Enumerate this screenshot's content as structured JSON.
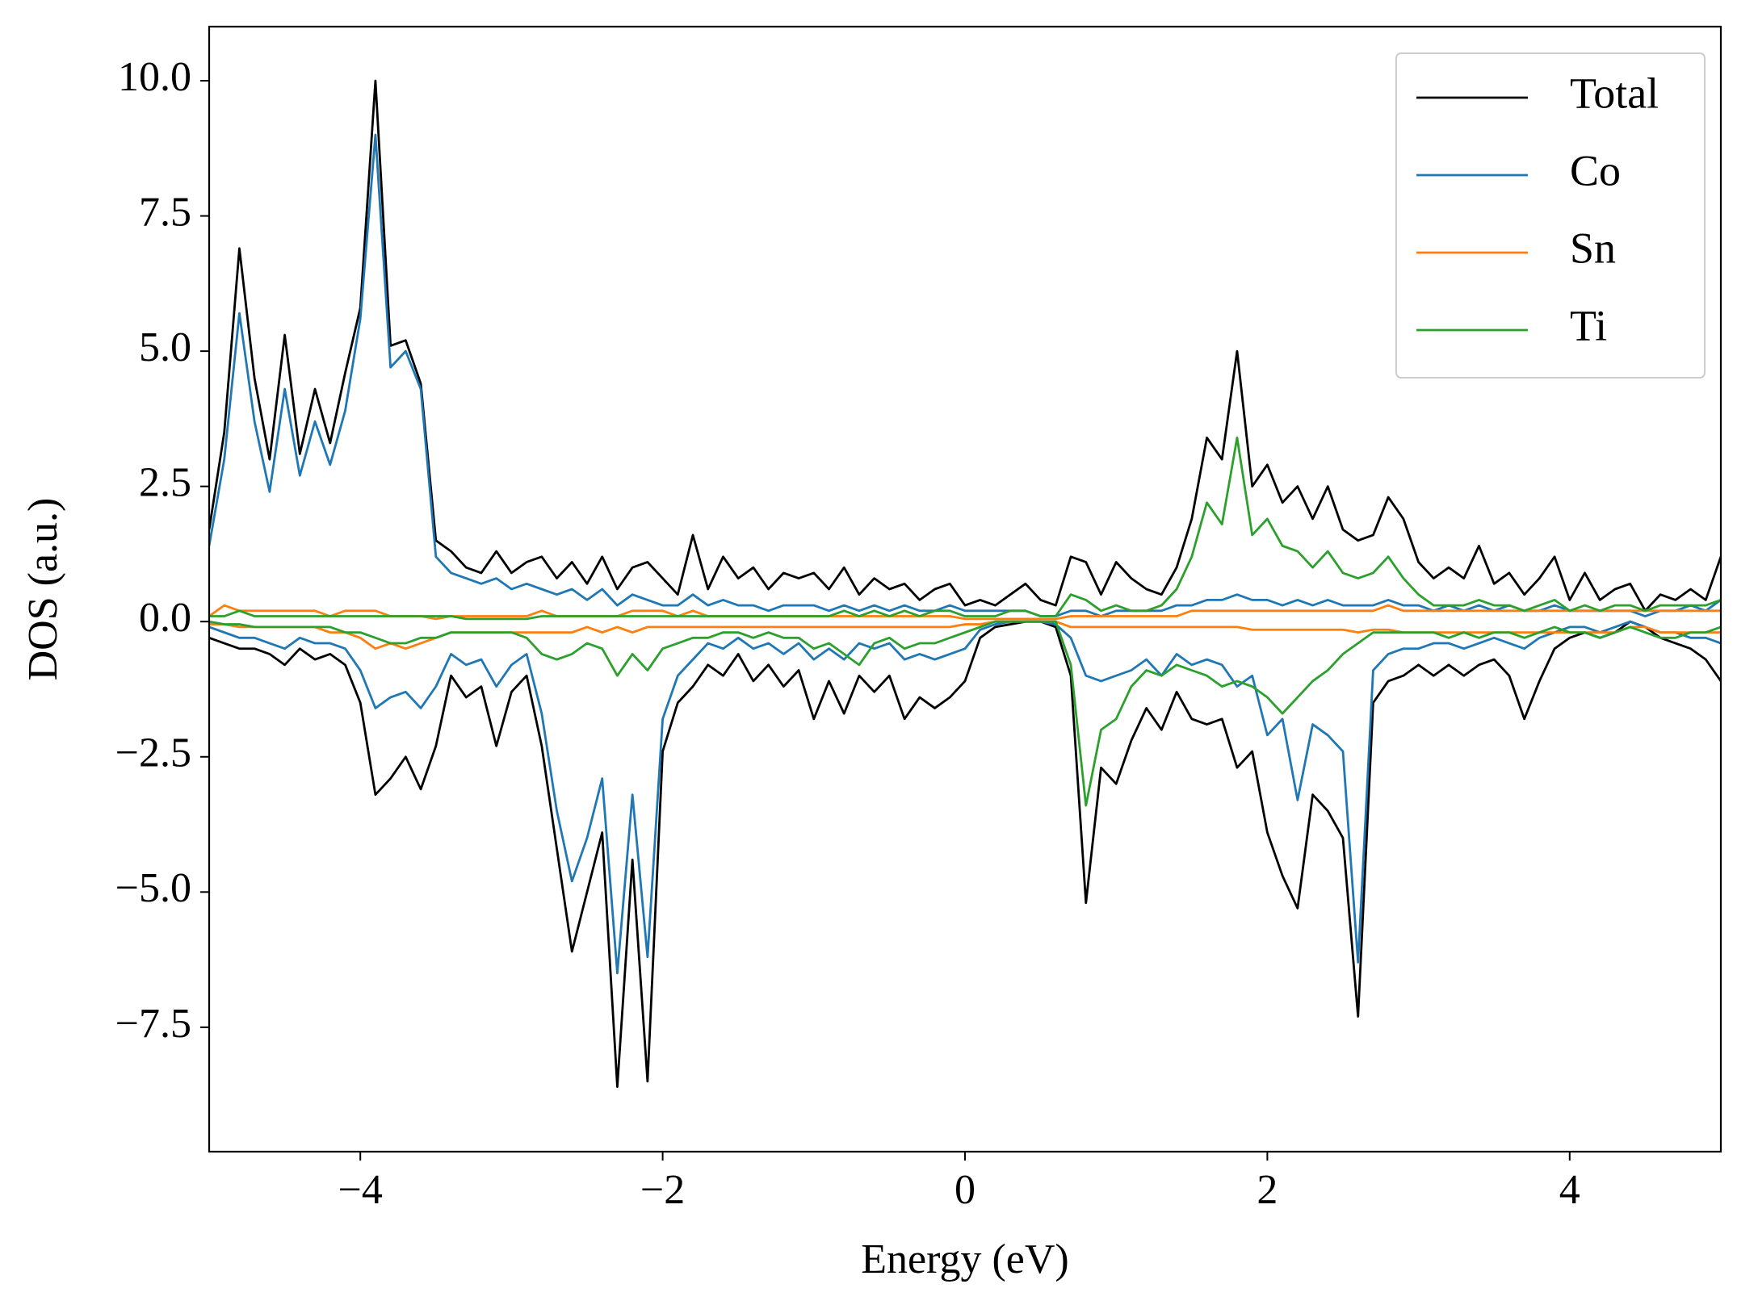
{
  "chart_data": {
    "type": "line",
    "xlabel": "Energy (eV)",
    "ylabel": "DOS (a.u.)",
    "x": [
      -5,
      -4.9,
      -4.8,
      -4.7,
      -4.6,
      -4.5,
      -4.4,
      -4.3,
      -4.2,
      -4.1,
      -4,
      -3.9,
      -3.8,
      -3.7,
      -3.6,
      -3.5,
      -3.4,
      -3.3,
      -3.2,
      -3.1,
      -3,
      -2.9,
      -2.8,
      -2.7,
      -2.6,
      -2.5,
      -2.4,
      -2.3,
      -2.2,
      -2.1,
      -2,
      -1.9,
      -1.8,
      -1.7,
      -1.6,
      -1.5,
      -1.4,
      -1.3,
      -1.2,
      -1.1,
      -1,
      -0.9,
      -0.8,
      -0.7,
      -0.6,
      -0.5,
      -0.4,
      -0.3,
      -0.2,
      -0.1,
      0,
      0.1,
      0.2,
      0.3,
      0.4,
      0.5,
      0.6,
      0.7,
      0.8,
      0.9,
      1,
      1.1,
      1.2,
      1.3,
      1.4,
      1.5,
      1.6,
      1.7,
      1.8,
      1.9,
      2,
      2.1,
      2.2,
      2.3,
      2.4,
      2.5,
      2.6,
      2.7,
      2.8,
      2.9,
      3,
      3.1,
      3.2,
      3.3,
      3.4,
      3.5,
      3.6,
      3.7,
      3.8,
      3.9,
      4,
      4.1,
      4.2,
      4.3,
      4.4,
      4.5,
      4.6,
      4.7,
      4.8,
      4.9,
      5
    ],
    "series": [
      {
        "name": "Total",
        "color": "#000000",
        "values": [
          1.7,
          3.5,
          6.9,
          4.5,
          3.0,
          5.3,
          3.1,
          4.3,
          3.3,
          4.6,
          5.8,
          10.0,
          5.1,
          5.2,
          4.4,
          1.5,
          1.3,
          1.0,
          0.9,
          1.3,
          0.9,
          1.1,
          1.2,
          0.8,
          1.1,
          0.7,
          1.2,
          0.6,
          1.0,
          1.1,
          0.8,
          0.5,
          1.6,
          0.6,
          1.2,
          0.8,
          1.0,
          0.6,
          0.9,
          0.8,
          0.9,
          0.6,
          1.0,
          0.5,
          0.8,
          0.6,
          0.7,
          0.4,
          0.6,
          0.7,
          0.3,
          0.4,
          0.3,
          0.5,
          0.7,
          0.4,
          0.3,
          1.2,
          1.1,
          0.5,
          1.1,
          0.8,
          0.6,
          0.5,
          1.0,
          1.9,
          3.4,
          3.0,
          5.0,
          2.5,
          2.9,
          2.2,
          2.5,
          1.9,
          2.5,
          1.7,
          1.5,
          1.6,
          2.3,
          1.9,
          1.1,
          0.8,
          1.0,
          0.8,
          1.4,
          0.7,
          0.9,
          0.5,
          0.8,
          1.2,
          0.4,
          0.9,
          0.4,
          0.6,
          0.7,
          0.2,
          0.5,
          0.4,
          0.6,
          0.4,
          1.2
        ]
      },
      {
        "color": "#000000",
        "values": [
          -0.3,
          -0.4,
          -0.5,
          -0.5,
          -0.6,
          -0.8,
          -0.5,
          -0.7,
          -0.6,
          -0.8,
          -1.5,
          -3.2,
          -2.9,
          -2.5,
          -3.1,
          -2.3,
          -1.0,
          -1.4,
          -1.2,
          -2.3,
          -1.3,
          -1.0,
          -2.3,
          -4.2,
          -6.1,
          -5.0,
          -3.9,
          -8.6,
          -4.4,
          -8.5,
          -2.4,
          -1.5,
          -1.2,
          -0.8,
          -1.0,
          -0.6,
          -1.1,
          -0.8,
          -1.2,
          -0.9,
          -1.8,
          -1.1,
          -1.7,
          -1.0,
          -1.3,
          -1.0,
          -1.8,
          -1.4,
          -1.6,
          -1.4,
          -1.1,
          -0.3,
          -0.1,
          -0.05,
          0,
          0,
          -0.1,
          -1.0,
          -5.2,
          -2.7,
          -3.0,
          -2.2,
          -1.6,
          -2.0,
          -1.3,
          -1.8,
          -1.9,
          -1.8,
          -2.7,
          -2.4,
          -3.9,
          -4.7,
          -5.3,
          -3.2,
          -3.5,
          -4.0,
          -7.3,
          -1.5,
          -1.1,
          -1.0,
          -0.8,
          -1.0,
          -0.8,
          -1.0,
          -0.8,
          -0.7,
          -1.0,
          -1.8,
          -1.1,
          -0.5,
          -0.3,
          -0.2,
          -0.3,
          -0.2,
          0,
          -0.1,
          -0.3,
          -0.4,
          -0.5,
          -0.7,
          -1.1
        ]
      },
      {
        "name": "Co",
        "color": "#1f77b4",
        "values": [
          1.4,
          3.0,
          5.7,
          3.7,
          2.4,
          4.3,
          2.7,
          3.7,
          2.9,
          3.9,
          5.6,
          9.0,
          4.7,
          5.0,
          4.3,
          1.2,
          0.9,
          0.8,
          0.7,
          0.8,
          0.6,
          0.7,
          0.6,
          0.5,
          0.6,
          0.4,
          0.6,
          0.3,
          0.5,
          0.4,
          0.3,
          0.3,
          0.5,
          0.3,
          0.4,
          0.3,
          0.3,
          0.2,
          0.3,
          0.3,
          0.3,
          0.2,
          0.3,
          0.2,
          0.3,
          0.2,
          0.3,
          0.2,
          0.2,
          0.3,
          0.2,
          0.2,
          0.2,
          0.2,
          0.2,
          0.1,
          0.1,
          0.2,
          0.2,
          0.1,
          0.2,
          0.2,
          0.2,
          0.2,
          0.3,
          0.3,
          0.4,
          0.4,
          0.5,
          0.4,
          0.4,
          0.3,
          0.4,
          0.3,
          0.4,
          0.3,
          0.3,
          0.3,
          0.4,
          0.3,
          0.3,
          0.2,
          0.3,
          0.2,
          0.3,
          0.2,
          0.3,
          0.2,
          0.2,
          0.3,
          0.2,
          0.2,
          0.2,
          0.2,
          0.2,
          0.1,
          0.2,
          0.2,
          0.3,
          0.2,
          0.4
        ]
      },
      {
        "color": "#1f77b4",
        "values": [
          -0.1,
          -0.2,
          -0.3,
          -0.3,
          -0.4,
          -0.5,
          -0.3,
          -0.4,
          -0.4,
          -0.5,
          -0.9,
          -1.6,
          -1.4,
          -1.3,
          -1.6,
          -1.2,
          -0.6,
          -0.8,
          -0.7,
          -1.2,
          -0.8,
          -0.6,
          -1.7,
          -3.5,
          -4.8,
          -4.0,
          -2.9,
          -6.5,
          -3.2,
          -6.2,
          -1.8,
          -1.0,
          -0.7,
          -0.4,
          -0.5,
          -0.3,
          -0.5,
          -0.4,
          -0.6,
          -0.4,
          -0.7,
          -0.5,
          -0.7,
          -0.4,
          -0.5,
          -0.4,
          -0.7,
          -0.6,
          -0.7,
          -0.6,
          -0.5,
          -0.15,
          -0.05,
          0,
          0,
          0,
          -0.05,
          -0.3,
          -1.0,
          -1.1,
          -1.0,
          -0.9,
          -0.7,
          -1.0,
          -0.6,
          -0.8,
          -0.7,
          -0.8,
          -1.2,
          -1.0,
          -2.1,
          -1.8,
          -3.3,
          -1.9,
          -2.1,
          -2.4,
          -6.3,
          -0.9,
          -0.6,
          -0.5,
          -0.5,
          -0.4,
          -0.4,
          -0.5,
          -0.4,
          -0.3,
          -0.4,
          -0.5,
          -0.3,
          -0.2,
          -0.1,
          -0.1,
          -0.2,
          -0.1,
          0,
          -0.1,
          -0.2,
          -0.2,
          -0.3,
          -0.3,
          -0.4
        ]
      },
      {
        "name": "Sn",
        "color": "#ff7f0e",
        "values": [
          0.1,
          0.3,
          0.2,
          0.2,
          0.2,
          0.2,
          0.2,
          0.2,
          0.1,
          0.2,
          0.2,
          0.2,
          0.1,
          0.1,
          0.1,
          0.05,
          0.1,
          0.1,
          0.1,
          0.1,
          0.1,
          0.1,
          0.2,
          0.1,
          0.1,
          0.1,
          0.1,
          0.1,
          0.2,
          0.2,
          0.2,
          0.1,
          0.2,
          0.1,
          0.1,
          0.1,
          0.1,
          0.1,
          0.1,
          0.1,
          0.1,
          0.1,
          0.1,
          0.1,
          0.1,
          0.1,
          0.1,
          0.1,
          0.1,
          0.1,
          0.05,
          0.05,
          0.05,
          0.05,
          0.05,
          0.05,
          0.05,
          0.1,
          0.1,
          0.1,
          0.1,
          0.1,
          0.1,
          0.1,
          0.1,
          0.2,
          0.2,
          0.2,
          0.2,
          0.2,
          0.2,
          0.2,
          0.2,
          0.2,
          0.2,
          0.2,
          0.2,
          0.2,
          0.3,
          0.2,
          0.2,
          0.2,
          0.2,
          0.2,
          0.2,
          0.2,
          0.2,
          0.2,
          0.2,
          0.2,
          0.2,
          0.2,
          0.2,
          0.2,
          0.2,
          0.2,
          0.2,
          0.2,
          0.2,
          0.2,
          0.2
        ]
      },
      {
        "color": "#ff7f0e",
        "values": [
          -0.05,
          -0.05,
          -0.1,
          -0.1,
          -0.1,
          -0.1,
          -0.1,
          -0.1,
          -0.2,
          -0.2,
          -0.3,
          -0.5,
          -0.4,
          -0.5,
          -0.4,
          -0.3,
          -0.2,
          -0.2,
          -0.2,
          -0.2,
          -0.2,
          -0.2,
          -0.2,
          -0.2,
          -0.2,
          -0.1,
          -0.2,
          -0.1,
          -0.2,
          -0.1,
          -0.1,
          -0.1,
          -0.1,
          -0.1,
          -0.1,
          -0.1,
          -0.1,
          -0.1,
          -0.1,
          -0.1,
          -0.1,
          -0.1,
          -0.1,
          -0.1,
          -0.1,
          -0.1,
          -0.1,
          -0.1,
          -0.1,
          -0.1,
          -0.05,
          -0.05,
          0,
          0,
          0,
          0,
          0,
          -0.1,
          -0.1,
          -0.1,
          -0.1,
          -0.1,
          -0.1,
          -0.1,
          -0.1,
          -0.1,
          -0.1,
          -0.1,
          -0.1,
          -0.15,
          -0.15,
          -0.15,
          -0.15,
          -0.15,
          -0.15,
          -0.15,
          -0.2,
          -0.15,
          -0.15,
          -0.2,
          -0.2,
          -0.2,
          -0.2,
          -0.2,
          -0.2,
          -0.2,
          -0.2,
          -0.2,
          -0.2,
          -0.2,
          -0.2,
          -0.2,
          -0.2,
          -0.2,
          -0.1,
          -0.1,
          -0.2,
          -0.2,
          -0.2,
          -0.2,
          -0.2
        ]
      },
      {
        "name": "Ti",
        "color": "#2ca02c",
        "values": [
          0.1,
          0.1,
          0.2,
          0.1,
          0.1,
          0.1,
          0.1,
          0.1,
          0.1,
          0.1,
          0.1,
          0.1,
          0.1,
          0.1,
          0.1,
          0.1,
          0.1,
          0.05,
          0.05,
          0.05,
          0.05,
          0.05,
          0.1,
          0.1,
          0.1,
          0.1,
          0.1,
          0.1,
          0.1,
          0.1,
          0.1,
          0.1,
          0.1,
          0.1,
          0.1,
          0.1,
          0.1,
          0.1,
          0.1,
          0.1,
          0.1,
          0.1,
          0.2,
          0.1,
          0.2,
          0.1,
          0.2,
          0.1,
          0.2,
          0.2,
          0.1,
          0.1,
          0.1,
          0.2,
          0.2,
          0.1,
          0.1,
          0.5,
          0.4,
          0.2,
          0.3,
          0.2,
          0.2,
          0.3,
          0.6,
          1.2,
          2.2,
          1.8,
          3.4,
          1.6,
          1.9,
          1.4,
          1.3,
          1.0,
          1.3,
          0.9,
          0.8,
          0.9,
          1.2,
          0.8,
          0.5,
          0.3,
          0.3,
          0.3,
          0.4,
          0.3,
          0.3,
          0.2,
          0.3,
          0.4,
          0.2,
          0.3,
          0.2,
          0.3,
          0.3,
          0.2,
          0.3,
          0.3,
          0.3,
          0.3,
          0.4
        ]
      },
      {
        "color": "#2ca02c",
        "values": [
          0,
          -0.05,
          -0.05,
          -0.1,
          -0.1,
          -0.1,
          -0.1,
          -0.1,
          -0.1,
          -0.2,
          -0.2,
          -0.3,
          -0.4,
          -0.4,
          -0.3,
          -0.3,
          -0.2,
          -0.2,
          -0.2,
          -0.2,
          -0.2,
          -0.3,
          -0.6,
          -0.7,
          -0.6,
          -0.4,
          -0.5,
          -1.0,
          -0.6,
          -0.9,
          -0.5,
          -0.4,
          -0.3,
          -0.3,
          -0.2,
          -0.2,
          -0.3,
          -0.2,
          -0.3,
          -0.3,
          -0.5,
          -0.4,
          -0.6,
          -0.8,
          -0.4,
          -0.3,
          -0.5,
          -0.4,
          -0.4,
          -0.3,
          -0.2,
          -0.1,
          0,
          0,
          0,
          0,
          0,
          -0.8,
          -3.4,
          -2.0,
          -1.8,
          -1.2,
          -0.9,
          -1.0,
          -0.8,
          -0.9,
          -1.0,
          -1.2,
          -1.1,
          -1.2,
          -1.4,
          -1.7,
          -1.4,
          -1.1,
          -0.9,
          -0.6,
          -0.4,
          -0.2,
          -0.2,
          -0.2,
          -0.2,
          -0.2,
          -0.3,
          -0.2,
          -0.3,
          -0.2,
          -0.2,
          -0.3,
          -0.2,
          -0.1,
          -0.2,
          -0.2,
          -0.3,
          -0.2,
          -0.1,
          -0.2,
          -0.3,
          -0.3,
          -0.2,
          -0.2,
          -0.1
        ]
      }
    ],
    "xlim": [
      -5,
      5
    ],
    "ylim": [
      -9.8,
      11
    ],
    "xticks": [
      {
        "value": -4,
        "label": "−4"
      },
      {
        "value": -2,
        "label": "−2"
      },
      0,
      2,
      4
    ],
    "yticks": [
      {
        "value": 10,
        "label": "10.0"
      },
      7.5,
      {
        "value": 5,
        "label": "5.0"
      },
      2.5,
      {
        "value": 0,
        "label": "0.0"
      },
      {
        "value": -2.5,
        "label": "−2.5"
      },
      {
        "value": -5,
        "label": "−5.0"
      },
      {
        "value": -7.5,
        "label": "−7.5"
      }
    ],
    "grid": false,
    "legend": "upper right"
  }
}
